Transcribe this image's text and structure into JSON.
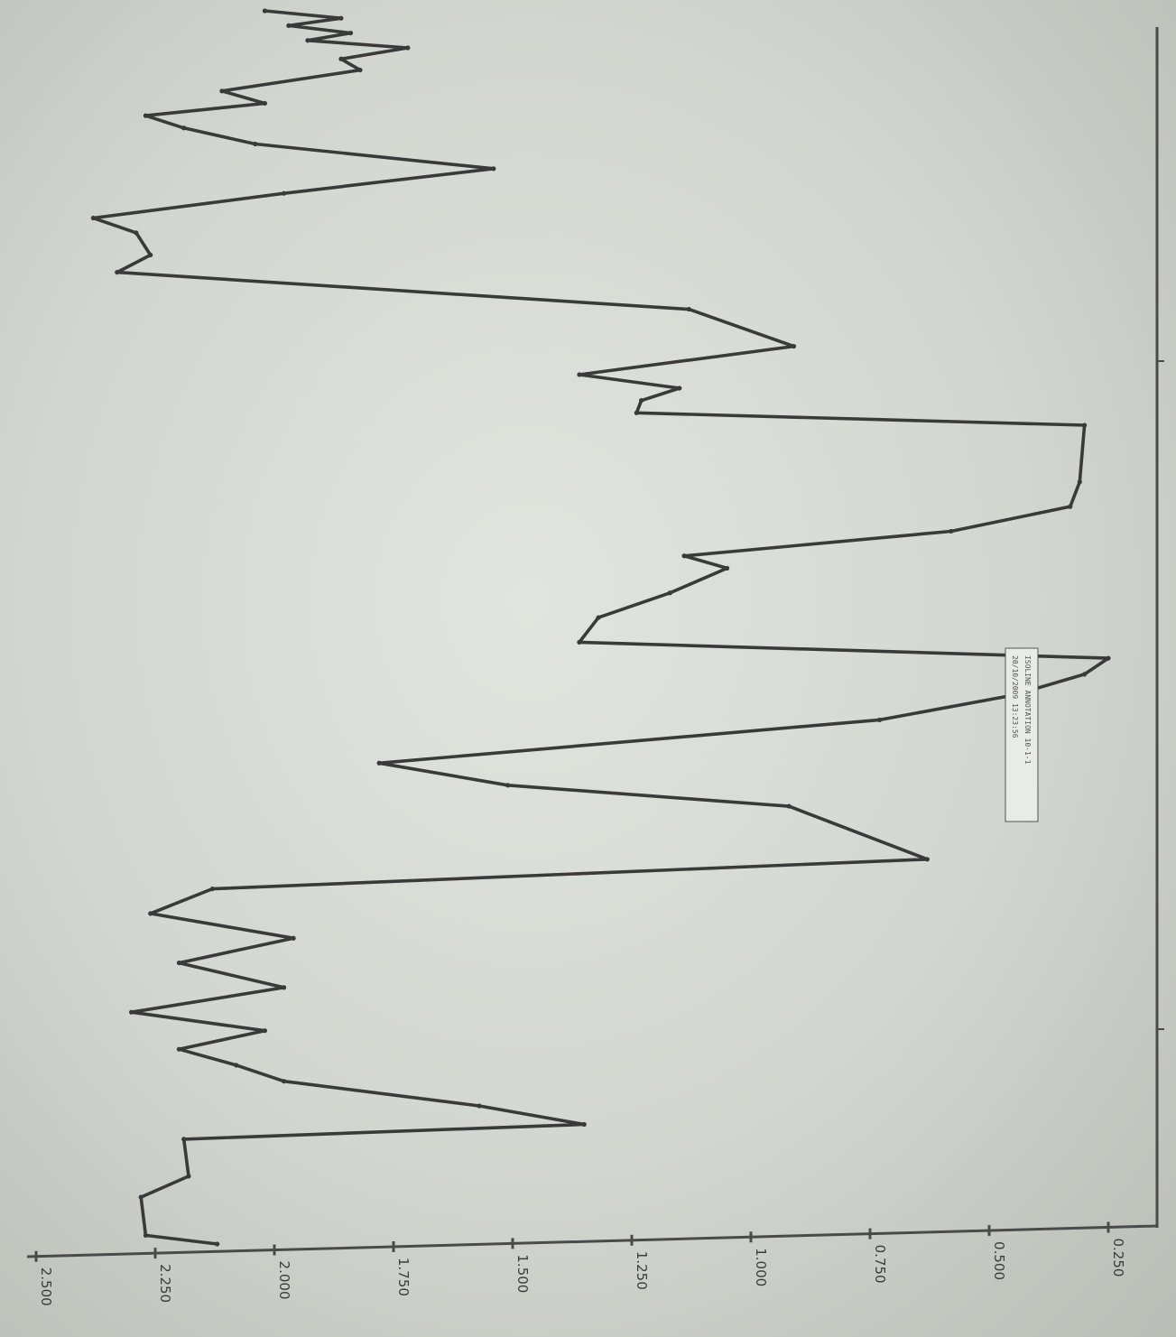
{
  "chart_data": {
    "type": "line",
    "ylim": [
      0.25,
      2.5
    ],
    "y_ticks": [
      {
        "value": 0.25,
        "label": "0.250"
      },
      {
        "value": 0.5,
        "label": "0.500"
      },
      {
        "value": 0.75,
        "label": "0.750"
      },
      {
        "value": 1.0,
        "label": "1.000"
      },
      {
        "value": 1.25,
        "label": "1.250"
      },
      {
        "value": 1.5,
        "label": "1.500"
      },
      {
        "value": 1.75,
        "label": "1.750"
      },
      {
        "value": 2.0,
        "label": "2.000"
      },
      {
        "value": 2.25,
        "label": "2.250"
      },
      {
        "value": 2.5,
        "label": "2.500"
      }
    ],
    "grid": false,
    "legend": "none",
    "annotation": {
      "lines": [
        "ISOLINE ANNOTATION 10-1-1",
        "20/10/2009 13:23:56"
      ]
    },
    "colors": {
      "line": "#3a3a3a",
      "axis": "#4a4a4a",
      "text": "#3c3c3c"
    },
    "series": [
      {
        "x": [
          0,
          0.6,
          1.2,
          1.8,
          2.4,
          3.0,
          3.9,
          4.8,
          6.5,
          7.5,
          8.5,
          9.5,
          10.8,
          12.8,
          14.8,
          16.8,
          18.0,
          19.8,
          21.2,
          24.2,
          27.2,
          29.5,
          30.6,
          31.6,
          32.6,
          33.6,
          38.2,
          40.2,
          42.2,
          44.2,
          45.2,
          47.2,
          49.2,
          51.2,
          52.5,
          53.8,
          55.5,
          57.5,
          61.0,
          62.8,
          64.5,
          68.8,
          71.2,
          73.2,
          75.2,
          77.2,
          79.2,
          81.2,
          82.7,
          84.2,
          85.5,
          86.8,
          88.8,
          90.3,
          91.5,
          94.5,
          96.2,
          99.3,
          100
        ],
        "y": [
          2.02,
          1.86,
          1.97,
          1.84,
          1.93,
          1.72,
          1.86,
          1.82,
          2.11,
          2.02,
          2.27,
          2.19,
          2.04,
          1.54,
          1.98,
          2.38,
          2.29,
          2.26,
          2.33,
          1.13,
          0.91,
          1.36,
          1.15,
          1.23,
          1.24,
          0.3,
          0.31,
          0.33,
          0.58,
          1.14,
          1.05,
          1.17,
          1.32,
          1.36,
          0.25,
          0.3,
          0.45,
          0.73,
          1.78,
          1.51,
          0.92,
          0.63,
          2.13,
          2.26,
          1.96,
          2.2,
          1.98,
          2.3,
          2.02,
          2.2,
          2.08,
          1.98,
          1.57,
          1.35,
          2.19,
          2.18,
          2.28,
          2.27,
          2.12
        ]
      }
    ]
  }
}
